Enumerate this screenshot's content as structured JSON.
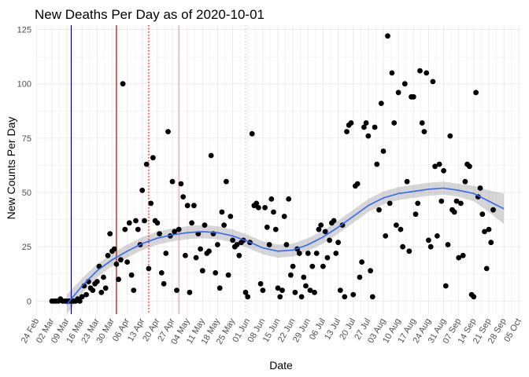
{
  "chart_data": {
    "type": "scatter",
    "title": "New Deaths Per Day as of 2020-10-01",
    "xlabel": "Date",
    "ylabel": "New Counts Per Day",
    "xlim": [
      "2020-02-23",
      "2020-10-06"
    ],
    "ylim": [
      -6,
      127
    ],
    "grid": true,
    "legend": "none",
    "x_ticks": [
      "2020-02-24",
      "2020-03-02",
      "2020-03-09",
      "2020-03-16",
      "2020-03-23",
      "2020-03-30",
      "2020-04-06",
      "2020-04-13",
      "2020-04-20",
      "2020-04-27",
      "2020-05-04",
      "2020-05-11",
      "2020-05-18",
      "2020-05-25",
      "2020-06-01",
      "2020-06-08",
      "2020-06-15",
      "2020-06-22",
      "2020-06-29",
      "2020-07-06",
      "2020-07-13",
      "2020-07-20",
      "2020-07-27",
      "2020-08-03",
      "2020-08-10",
      "2020-08-17",
      "2020-08-24",
      "2020-08-31",
      "2020-09-07",
      "2020-09-14",
      "2020-09-21",
      "2020-09-28",
      "2020-10-05"
    ],
    "x_tick_labels": [
      "24 Feb",
      "02 Mar",
      "09 Mar",
      "16 Mar",
      "23 Mar",
      "30 Mar",
      "06 Apr",
      "13 Apr",
      "20 Apr",
      "27 Apr",
      "04 May",
      "11 May",
      "18 May",
      "25 May",
      "01 Jun",
      "08 Jun",
      "15 Jun",
      "22 Jun",
      "29 Jun",
      "06 Jul",
      "13 Jul",
      "20 Jul",
      "27 Jul",
      "03 Aug",
      "10 Aug",
      "17 Aug",
      "24 Aug",
      "31 Aug",
      "07 Sep",
      "14 Sep",
      "21 Sep",
      "28 Sep",
      "05 Oct"
    ],
    "y_ticks": [
      0,
      25,
      50,
      75,
      100,
      125
    ],
    "y_tick_labels": [
      "0",
      "25",
      "50",
      "75",
      "100",
      "125"
    ],
    "colors": {
      "points": "#000000",
      "smooth_line": "#3366FF",
      "smooth_band": "#999999",
      "vline_blue": "#000080",
      "vline_red": "#CC0000",
      "vline_red_dotted": "#CC0000",
      "vline_pink": "#F4A0A0",
      "vline_grey_dotted": "#C8C8C8",
      "grid": "#EBEBEB"
    },
    "vlines": [
      {
        "x": "2020-03-11",
        "color": "#000080",
        "style": "solid"
      },
      {
        "x": "2020-04-01",
        "color": "#CC0000",
        "style": "solid"
      },
      {
        "x": "2020-04-16",
        "color": "#CC0000",
        "style": "dotted"
      },
      {
        "x": "2020-04-30",
        "color": "#F4A0A0",
        "style": "solid"
      },
      {
        "x": "2020-05-31",
        "color": "#C8C8C8",
        "style": "dotted"
      }
    ],
    "points": [
      [
        "2020-03-02",
        0
      ],
      [
        "2020-03-03",
        0
      ],
      [
        "2020-03-04",
        0
      ],
      [
        "2020-03-05",
        0
      ],
      [
        "2020-03-06",
        1
      ],
      [
        "2020-03-07",
        0
      ],
      [
        "2020-03-08",
        0
      ],
      [
        "2020-03-09",
        0
      ],
      [
        "2020-03-10",
        0
      ],
      [
        "2020-03-11",
        0
      ],
      [
        "2020-03-12",
        0
      ],
      [
        "2020-03-13",
        0
      ],
      [
        "2020-03-14",
        1
      ],
      [
        "2020-03-15",
        0
      ],
      [
        "2020-03-16",
        2
      ],
      [
        "2020-03-17",
        7
      ],
      [
        "2020-03-18",
        3
      ],
      [
        "2020-03-19",
        9
      ],
      [
        "2020-03-20",
        6
      ],
      [
        "2020-03-21",
        5
      ],
      [
        "2020-03-22",
        8
      ],
      [
        "2020-03-23",
        9
      ],
      [
        "2020-03-24",
        16
      ],
      [
        "2020-03-25",
        4
      ],
      [
        "2020-03-26",
        11
      ],
      [
        "2020-03-27",
        6
      ],
      [
        "2020-03-28",
        21
      ],
      [
        "2020-03-29",
        31
      ],
      [
        "2020-03-30",
        23
      ],
      [
        "2020-03-31",
        24
      ],
      [
        "2020-04-01",
        17
      ],
      [
        "2020-04-02",
        10
      ],
      [
        "2020-04-03",
        19
      ],
      [
        "2020-04-04",
        100
      ],
      [
        "2020-04-05",
        33
      ],
      [
        "2020-04-06",
        18
      ],
      [
        "2020-04-07",
        36
      ],
      [
        "2020-04-08",
        12
      ],
      [
        "2020-04-09",
        5
      ],
      [
        "2020-04-10",
        37
      ],
      [
        "2020-04-11",
        33
      ],
      [
        "2020-04-12",
        26
      ],
      [
        "2020-04-13",
        51
      ],
      [
        "2020-04-14",
        37
      ],
      [
        "2020-04-15",
        63
      ],
      [
        "2020-04-16",
        15
      ],
      [
        "2020-04-17",
        45
      ],
      [
        "2020-04-18",
        66
      ],
      [
        "2020-04-19",
        37
      ],
      [
        "2020-04-20",
        36
      ],
      [
        "2020-04-21",
        31
      ],
      [
        "2020-04-22",
        13
      ],
      [
        "2020-04-23",
        8
      ],
      [
        "2020-04-24",
        22
      ],
      [
        "2020-04-25",
        78
      ],
      [
        "2020-04-26",
        30
      ],
      [
        "2020-04-27",
        55
      ],
      [
        "2020-04-28",
        32
      ],
      [
        "2020-04-29",
        5
      ],
      [
        "2020-04-30",
        33
      ],
      [
        "2020-05-01",
        54
      ],
      [
        "2020-05-02",
        48
      ],
      [
        "2020-05-03",
        21
      ],
      [
        "2020-05-04",
        44
      ],
      [
        "2020-05-05",
        4
      ],
      [
        "2020-05-06",
        36
      ],
      [
        "2020-05-07",
        44
      ],
      [
        "2020-05-08",
        20
      ],
      [
        "2020-05-09",
        31
      ],
      [
        "2020-05-10",
        24
      ],
      [
        "2020-05-11",
        14
      ],
      [
        "2020-05-12",
        35
      ],
      [
        "2020-05-13",
        22
      ],
      [
        "2020-05-14",
        23
      ],
      [
        "2020-05-15",
        67
      ],
      [
        "2020-05-16",
        31
      ],
      [
        "2020-05-17",
        13
      ],
      [
        "2020-05-18",
        26
      ],
      [
        "2020-05-19",
        6
      ],
      [
        "2020-05-20",
        41
      ],
      [
        "2020-05-21",
        35
      ],
      [
        "2020-05-22",
        55
      ],
      [
        "2020-05-23",
        12
      ],
      [
        "2020-05-24",
        39
      ],
      [
        "2020-05-25",
        28
      ],
      [
        "2020-05-26",
        25
      ],
      [
        "2020-05-27",
        26
      ],
      [
        "2020-05-28",
        21
      ],
      [
        "2020-05-29",
        27
      ],
      [
        "2020-05-30",
        28
      ],
      [
        "2020-05-31",
        4
      ],
      [
        "2020-06-01",
        2
      ],
      [
        "2020-06-02",
        27
      ],
      [
        "2020-06-03",
        77
      ],
      [
        "2020-06-04",
        44
      ],
      [
        "2020-06-05",
        45
      ],
      [
        "2020-06-06",
        43
      ],
      [
        "2020-06-07",
        8
      ],
      [
        "2020-06-08",
        5
      ],
      [
        "2020-06-09",
        43
      ],
      [
        "2020-06-10",
        34
      ],
      [
        "2020-06-11",
        26
      ],
      [
        "2020-06-12",
        47
      ],
      [
        "2020-06-13",
        41
      ],
      [
        "2020-06-14",
        33
      ],
      [
        "2020-06-15",
        6
      ],
      [
        "2020-06-16",
        2
      ],
      [
        "2020-06-17",
        5
      ],
      [
        "2020-06-18",
        39
      ],
      [
        "2020-06-19",
        26
      ],
      [
        "2020-06-20",
        47
      ],
      [
        "2020-06-21",
        12
      ],
      [
        "2020-06-22",
        16
      ],
      [
        "2020-06-23",
        4
      ],
      [
        "2020-06-24",
        24
      ],
      [
        "2020-06-25",
        22
      ],
      [
        "2020-06-26",
        2
      ],
      [
        "2020-06-27",
        11
      ],
      [
        "2020-06-28",
        7
      ],
      [
        "2020-06-29",
        22
      ],
      [
        "2020-06-30",
        5
      ],
      [
        "2020-07-01",
        16
      ],
      [
        "2020-07-02",
        4
      ],
      [
        "2020-07-03",
        22
      ],
      [
        "2020-07-04",
        33
      ],
      [
        "2020-07-05",
        35
      ],
      [
        "2020-07-06",
        16
      ],
      [
        "2020-07-07",
        32
      ],
      [
        "2020-07-08",
        20
      ],
      [
        "2020-07-09",
        28
      ],
      [
        "2020-07-10",
        36
      ],
      [
        "2020-07-11",
        37
      ],
      [
        "2020-07-12",
        22
      ],
      [
        "2020-07-13",
        27
      ],
      [
        "2020-07-14",
        5
      ],
      [
        "2020-07-15",
        35
      ],
      [
        "2020-07-16",
        2
      ],
      [
        "2020-07-17",
        78
      ],
      [
        "2020-07-18",
        81
      ],
      [
        "2020-07-19",
        82
      ],
      [
        "2020-07-20",
        3
      ],
      [
        "2020-07-21",
        53
      ],
      [
        "2020-07-22",
        54
      ],
      [
        "2020-07-23",
        11
      ],
      [
        "2020-07-24",
        18
      ],
      [
        "2020-07-25",
        80
      ],
      [
        "2020-07-26",
        82
      ],
      [
        "2020-07-27",
        76
      ],
      [
        "2020-07-28",
        14
      ],
      [
        "2020-07-29",
        2
      ],
      [
        "2020-07-30",
        80
      ],
      [
        "2020-07-31",
        63
      ],
      [
        "2020-08-01",
        42
      ],
      [
        "2020-08-02",
        91
      ],
      [
        "2020-08-03",
        69
      ],
      [
        "2020-08-04",
        30
      ],
      [
        "2020-08-05",
        122
      ],
      [
        "2020-08-06",
        45
      ],
      [
        "2020-08-07",
        105
      ],
      [
        "2020-08-08",
        82
      ],
      [
        "2020-08-09",
        35
      ],
      [
        "2020-08-10",
        96
      ],
      [
        "2020-08-11",
        33
      ],
      [
        "2020-08-12",
        25
      ],
      [
        "2020-08-13",
        100
      ],
      [
        "2020-08-14",
        55
      ],
      [
        "2020-08-15",
        23
      ],
      [
        "2020-08-16",
        94
      ],
      [
        "2020-08-17",
        94
      ],
      [
        "2020-08-18",
        40
      ],
      [
        "2020-08-19",
        45
      ],
      [
        "2020-08-20",
        106
      ],
      [
        "2020-08-21",
        82
      ],
      [
        "2020-08-22",
        78
      ],
      [
        "2020-08-23",
        105
      ],
      [
        "2020-08-24",
        28
      ],
      [
        "2020-08-25",
        25
      ],
      [
        "2020-08-26",
        101
      ],
      [
        "2020-08-27",
        62
      ],
      [
        "2020-08-28",
        30
      ],
      [
        "2020-08-29",
        63
      ],
      [
        "2020-08-30",
        46
      ],
      [
        "2020-08-31",
        60
      ],
      [
        "2020-09-01",
        7
      ],
      [
        "2020-09-02",
        26
      ],
      [
        "2020-09-03",
        76
      ],
      [
        "2020-09-04",
        42
      ],
      [
        "2020-09-05",
        41
      ],
      [
        "2020-09-06",
        46
      ],
      [
        "2020-09-07",
        20
      ],
      [
        "2020-09-08",
        45
      ],
      [
        "2020-09-09",
        21
      ],
      [
        "2020-09-10",
        55
      ],
      [
        "2020-09-11",
        63
      ],
      [
        "2020-09-12",
        62
      ],
      [
        "2020-09-13",
        3
      ],
      [
        "2020-09-14",
        2
      ],
      [
        "2020-09-15",
        96
      ],
      [
        "2020-09-16",
        48
      ],
      [
        "2020-09-17",
        52
      ],
      [
        "2020-09-18",
        40
      ],
      [
        "2020-09-19",
        32
      ],
      [
        "2020-09-20",
        15
      ],
      [
        "2020-09-21",
        33
      ],
      [
        "2020-09-22",
        27
      ],
      [
        "2020-09-23",
        42
      ]
    ],
    "smooth": [
      [
        "2020-03-09",
        -1.5
      ],
      [
        "2020-03-16",
        7
      ],
      [
        "2020-03-23",
        14
      ],
      [
        "2020-03-30",
        19
      ],
      [
        "2020-04-06",
        23
      ],
      [
        "2020-04-13",
        26.5
      ],
      [
        "2020-04-20",
        29
      ],
      [
        "2020-04-27",
        30.5
      ],
      [
        "2020-05-04",
        31.5
      ],
      [
        "2020-05-11",
        32
      ],
      [
        "2020-05-18",
        31.5
      ],
      [
        "2020-05-25",
        30
      ],
      [
        "2020-06-01",
        27.5
      ],
      [
        "2020-06-08",
        24.5
      ],
      [
        "2020-06-15",
        23
      ],
      [
        "2020-06-22",
        23.5
      ],
      [
        "2020-06-29",
        26
      ],
      [
        "2020-07-06",
        29.5
      ],
      [
        "2020-07-13",
        34
      ],
      [
        "2020-07-20",
        39
      ],
      [
        "2020-07-27",
        44
      ],
      [
        "2020-08-03",
        47.5
      ],
      [
        "2020-08-10",
        49.5
      ],
      [
        "2020-08-17",
        50.5
      ],
      [
        "2020-08-24",
        51.5
      ],
      [
        "2020-08-31",
        52
      ],
      [
        "2020-09-07",
        51
      ],
      [
        "2020-09-14",
        49.5
      ],
      [
        "2020-09-21",
        46
      ],
      [
        "2020-09-28",
        42.5
      ]
    ],
    "smooth_band_halfwidth": [
      4.5,
      3.5,
      3,
      3,
      3,
      3,
      3,
      3,
      3,
      3,
      3,
      3,
      3,
      3,
      3,
      3,
      3,
      3,
      3,
      3,
      3,
      3,
      3,
      3,
      3,
      3,
      3,
      3.5,
      5,
      7
    ]
  }
}
